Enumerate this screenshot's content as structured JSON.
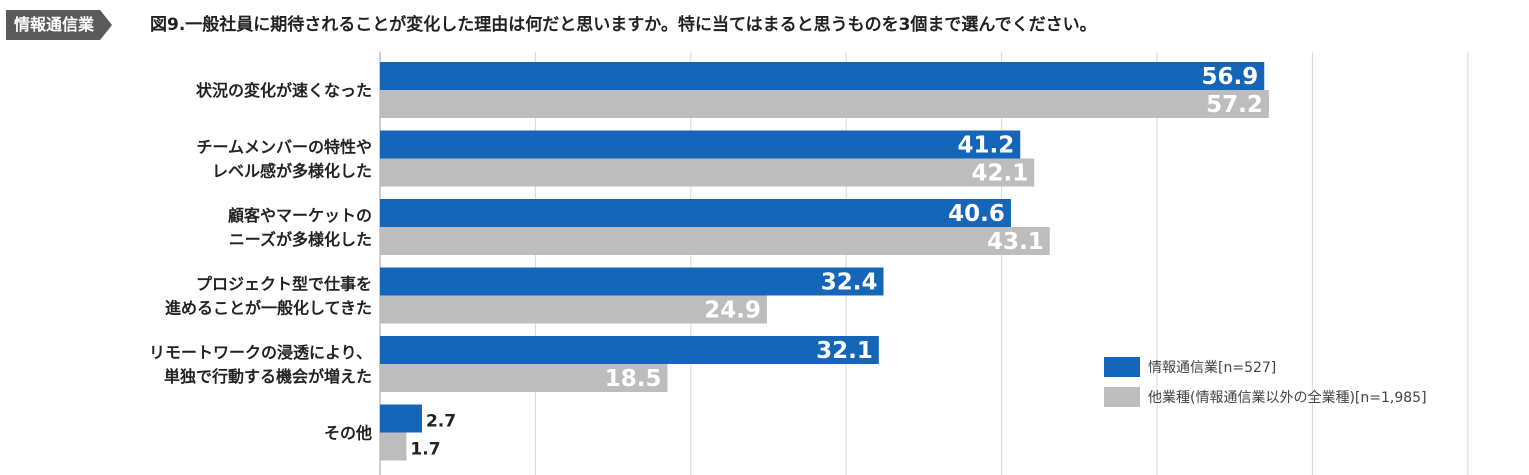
{
  "header": {
    "tag": "情報通信業",
    "title": "図9.一般社員に期待されることが変化した理由は何だと思いますか。特に当てはまると思うものを3個まで選んでください。"
  },
  "colors": {
    "series1": "#1565b8",
    "series2": "#bdbdbd",
    "grid": "#d9d9d9",
    "axis": "#9e9e9e"
  },
  "chart_data": {
    "type": "bar",
    "orientation": "horizontal",
    "categories": [
      [
        "状況の変化が速くなった"
      ],
      [
        "チームメンバーの特性や",
        "レベル感が多様化した"
      ],
      [
        "顧客やマーケットの",
        "ニーズが多様化した"
      ],
      [
        "プロジェクト型で仕事を",
        "進めることが一般化してきた"
      ],
      [
        "リモートワークの浸透により、",
        "単独で行動する機会が増えた"
      ],
      [
        "その他"
      ]
    ],
    "series": [
      {
        "name": "情報通信業[n=527]",
        "values": [
          56.9,
          41.2,
          40.6,
          32.4,
          32.1,
          2.7
        ]
      },
      {
        "name": "他業種(情報通信業以外の全業種)[n=1,985]",
        "values": [
          57.2,
          42.1,
          43.1,
          24.9,
          18.5,
          1.7
        ]
      }
    ],
    "xlim": [
      0,
      70
    ],
    "grid": true,
    "legend_position": "bottom-right"
  }
}
